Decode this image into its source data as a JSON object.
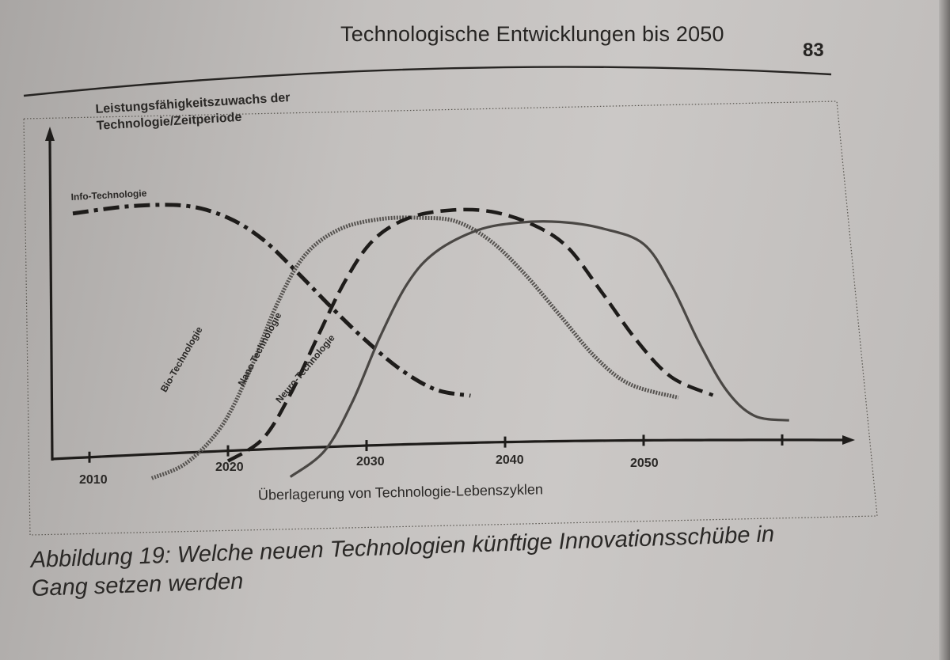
{
  "header": {
    "running_head": "Technologische Entwicklungen bis 2050",
    "page_number": "83"
  },
  "figure": {
    "caption_line1": "Abbildung 19: Welche neuen Technologien künftige Innovationsschübe in",
    "caption_line2": "Gang setzen werden"
  },
  "chart_data": {
    "type": "line",
    "ylabel_line1": "Leistungsfähigkeitszuwachs der",
    "ylabel_line2": "Technologie/Zeitperiode",
    "xlabel": "Überlagerung von Technologie-Lebenszyklen",
    "x_ticks": [
      "2010",
      "2020",
      "2030",
      "2040",
      "2050"
    ],
    "xlim": [
      2010,
      2060
    ],
    "y_ticks": [],
    "series": [
      {
        "name": "Info-Technologie",
        "style": "dash-dot",
        "x": [
          2008.8,
          2013,
          2017,
          2020,
          2022.5,
          2025,
          2027.5,
          2030,
          2032.5,
          2035,
          2037.5
        ],
        "y": [
          0.91,
          0.93,
          0.92,
          0.86,
          0.76,
          0.61,
          0.45,
          0.3,
          0.17,
          0.08,
          0.05
        ]
      },
      {
        "name": "Bio-Technologie",
        "style": "dotted",
        "x": [
          2014.5,
          2017,
          2019.5,
          2021.5,
          2023.5,
          2025.5,
          2028,
          2031,
          2034,
          2036.5,
          2039,
          2041.5,
          2044,
          2046.5,
          2049,
          2052.5
        ],
        "y": [
          -0.26,
          -0.2,
          -0.05,
          0.18,
          0.47,
          0.68,
          0.79,
          0.83,
          0.83,
          0.81,
          0.72,
          0.57,
          0.39,
          0.21,
          0.09,
          0.03
        ]
      },
      {
        "name": "Nano Technologie",
        "style": "dashed",
        "x": [
          2020,
          2022.5,
          2024.5,
          2026.5,
          2028.5,
          2030.5,
          2033,
          2036,
          2039,
          2042,
          2044.5,
          2047,
          2049.5,
          2052,
          2055
        ],
        "y": [
          -0.2,
          -0.11,
          0.08,
          0.33,
          0.57,
          0.74,
          0.83,
          0.86,
          0.85,
          0.79,
          0.69,
          0.49,
          0.28,
          0.12,
          0.04
        ]
      },
      {
        "name": "Neuro-Technologie",
        "style": "solid",
        "x": [
          2024.5,
          2027,
          2029,
          2031,
          2033,
          2035,
          2038,
          2041,
          2044,
          2047,
          2050,
          2052,
          2054,
          2056,
          2058,
          2060.5
        ],
        "y": [
          -0.28,
          -0.17,
          0.04,
          0.32,
          0.55,
          0.68,
          0.77,
          0.8,
          0.8,
          0.77,
          0.7,
          0.52,
          0.27,
          0.06,
          -0.05,
          -0.07
        ]
      }
    ]
  }
}
